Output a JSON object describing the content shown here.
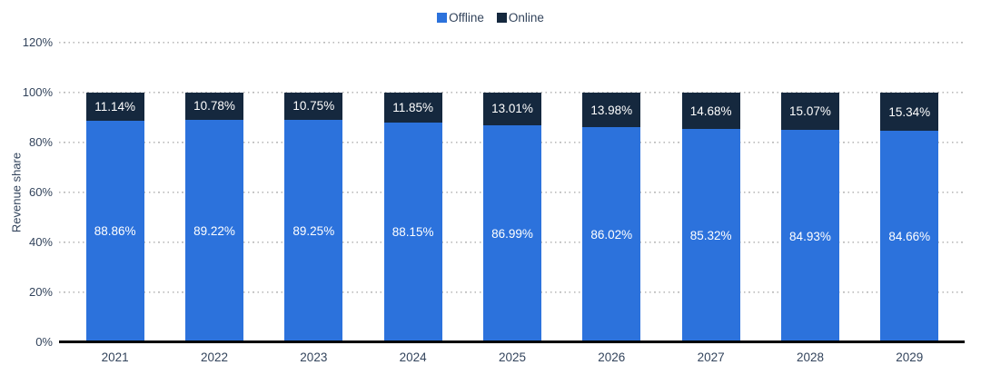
{
  "colors": {
    "offline": "#2c72dc",
    "online": "#15283e",
    "axis_text": "#33445c",
    "gridline": "#b9b9b9",
    "axis_line": "#000000",
    "value_label": "#ffffff",
    "background": "#ffffff"
  },
  "legend": {
    "position": "top-center",
    "items": [
      {
        "label": "Offline",
        "color": "#2c72dc"
      },
      {
        "label": "Online",
        "color": "#15283e"
      }
    ]
  },
  "chart_data": {
    "type": "bar",
    "stacked": true,
    "title": "",
    "xlabel": "",
    "ylabel": "Revenue share",
    "ylim": [
      0,
      120
    ],
    "grid": "dotted horizontal",
    "legend_position": "top-center",
    "categories": [
      "2021",
      "2022",
      "2023",
      "2024",
      "2025",
      "2026",
      "2027",
      "2028",
      "2029"
    ],
    "series": [
      {
        "name": "Offline",
        "color": "#2c72dc",
        "values": [
          88.86,
          89.22,
          89.25,
          88.15,
          86.99,
          86.02,
          85.32,
          84.93,
          84.66
        ],
        "labels": [
          "88.86%",
          "89.22%",
          "89.25%",
          "88.15%",
          "86.99%",
          "86.02%",
          "85.32%",
          "84.93%",
          "84.66%"
        ]
      },
      {
        "name": "Online",
        "color": "#15283e",
        "values": [
          11.14,
          10.78,
          10.75,
          11.85,
          13.01,
          13.98,
          14.68,
          15.07,
          15.34
        ],
        "labels": [
          "11.14%",
          "10.78%",
          "10.75%",
          "11.85%",
          "13.01%",
          "13.98%",
          "14.68%",
          "15.07%",
          "15.34%"
        ]
      }
    ],
    "yticks": [
      {
        "label": "120%",
        "value": 120
      },
      {
        "label": "100%",
        "value": 100
      },
      {
        "label": "80%",
        "value": 80
      },
      {
        "label": "60%",
        "value": 60
      },
      {
        "label": "40%",
        "value": 40
      },
      {
        "label": "20%",
        "value": 20
      },
      {
        "label": "0%",
        "value": 0
      }
    ]
  }
}
